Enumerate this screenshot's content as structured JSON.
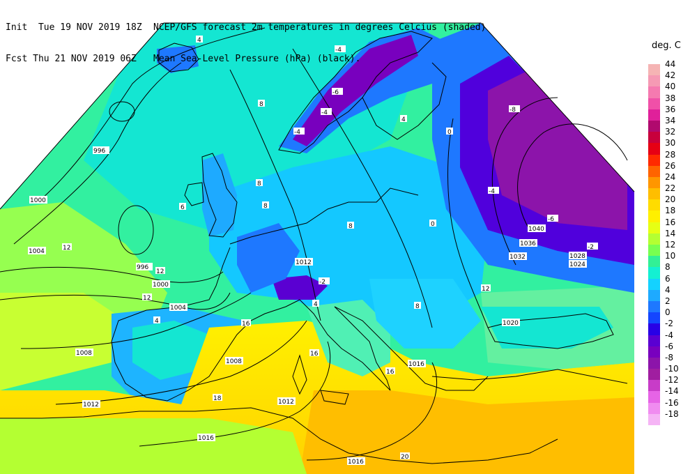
{
  "header": {
    "line1_left": "Init  Tue 19 NOV 2019 18Z",
    "line1_right": "NCEP/GFS forecast 2m temperatures in degrees Celcius (shaded)",
    "line2_left": "Fcst Thu 21 NOV 2019 06Z",
    "line2_right": "Mean Sea-Level Pressure (hPa) (black)."
  },
  "legend": {
    "title": "deg. C",
    "items": [
      {
        "label": "44",
        "color": "#f5b4b4"
      },
      {
        "label": "42",
        "color": "#f59ab4"
      },
      {
        "label": "40",
        "color": "#f57ab0"
      },
      {
        "label": "38",
        "color": "#f050a8"
      },
      {
        "label": "36",
        "color": "#e0209a"
      },
      {
        "label": "34",
        "color": "#b00a6e"
      },
      {
        "label": "32",
        "color": "#c8003c"
      },
      {
        "label": "30",
        "color": "#e60014"
      },
      {
        "label": "28",
        "color": "#ff2a00"
      },
      {
        "label": "26",
        "color": "#ff6400"
      },
      {
        "label": "24",
        "color": "#ff9600"
      },
      {
        "label": "22",
        "color": "#ffbe00"
      },
      {
        "label": "20",
        "color": "#ffdc00"
      },
      {
        "label": "18",
        "color": "#fff000"
      },
      {
        "label": "16",
        "color": "#e6ff14"
      },
      {
        "label": "14",
        "color": "#b4ff32"
      },
      {
        "label": "12",
        "color": "#78ff50"
      },
      {
        "label": "10",
        "color": "#32f096"
      },
      {
        "label": "8",
        "color": "#14f0d2"
      },
      {
        "label": "6",
        "color": "#14d2ff"
      },
      {
        "label": "4",
        "color": "#1eaaff"
      },
      {
        "label": "2",
        "color": "#1e78ff"
      },
      {
        "label": "0",
        "color": "#1446ff"
      },
      {
        "label": "-2",
        "color": "#2800e6"
      },
      {
        "label": "-4",
        "color": "#5a00d2"
      },
      {
        "label": "-6",
        "color": "#7800be"
      },
      {
        "label": "-8",
        "color": "#8c14aa"
      },
      {
        "label": "-10",
        "color": "#a01ea0"
      },
      {
        "label": "-12",
        "color": "#c83cc8"
      },
      {
        "label": "-14",
        "color": "#e664e6"
      },
      {
        "label": "-16",
        "color": "#f08cf0"
      },
      {
        "label": "-18",
        "color": "#f5b4f5"
      }
    ]
  },
  "isobar_labels": [
    "996",
    "1000",
    "1004",
    "996",
    "1000",
    "1004",
    "1008",
    "1008",
    "1012",
    "1012",
    "1016",
    "1016",
    "1016",
    "1012",
    "1020",
    "1024",
    "1028",
    "1032",
    "1036",
    "1040"
  ],
  "temperature_labels": [
    "4",
    "8",
    "-4",
    "-6",
    "-4",
    "8",
    "6",
    "8",
    "12",
    "12",
    "12",
    "4",
    "16",
    "16",
    "16",
    "18",
    "20",
    "0",
    "-4",
    "-8",
    "-6",
    "12",
    "8",
    "4",
    "8",
    "-4",
    "-2",
    "4",
    "0",
    "-2"
  ]
}
